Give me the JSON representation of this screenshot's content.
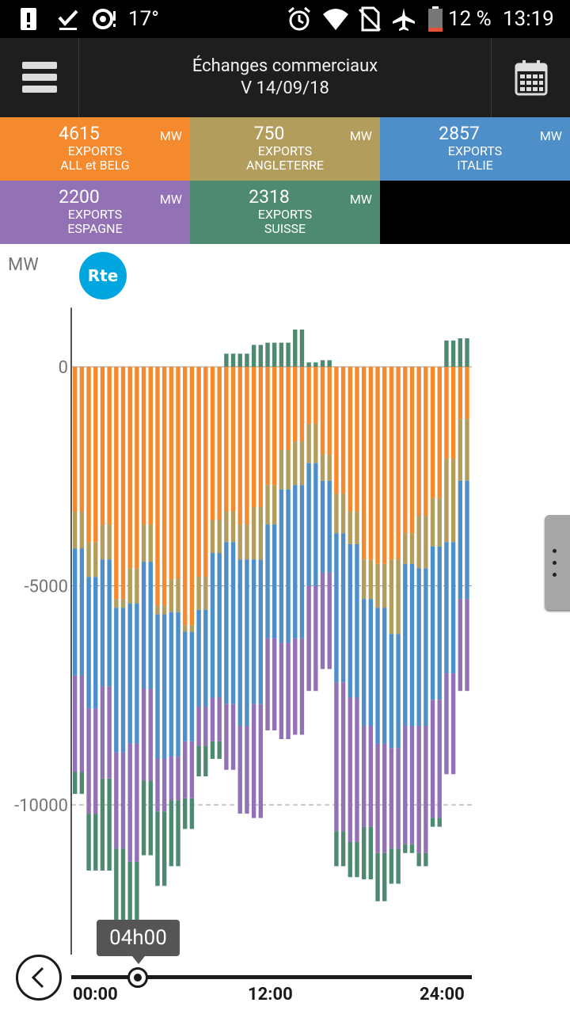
{
  "status_bar": {
    "temperature": "17°",
    "battery": "12 %",
    "time": "13:19"
  },
  "header": {
    "title": "Échanges commerciaux",
    "subtitle": "V 14/09/18"
  },
  "tiles": [
    {
      "value": "4615",
      "unit": "MW",
      "line1": "EXPORTS",
      "line2": "ALL et BELG",
      "color": "#f5892d"
    },
    {
      "value": "750",
      "unit": "MW",
      "line1": "EXPORTS",
      "line2": "ANGLETERRE",
      "color": "#b39d5c"
    },
    {
      "value": "2857",
      "unit": "MW",
      "line1": "EXPORTS",
      "line2": "ITALIE",
      "color": "#4e8fc9"
    },
    {
      "value": "2200",
      "unit": "MW",
      "line1": "EXPORTS",
      "line2": "ESPAGNE",
      "color": "#9271b5"
    },
    {
      "value": "2318",
      "unit": "MW",
      "line1": "EXPORTS",
      "line2": "SUISSE",
      "color": "#4e8a72"
    }
  ],
  "chart_data": {
    "type": "bar",
    "stacked": true,
    "ylabel": "MW",
    "ylim": [
      -13100,
      1350
    ],
    "yticks": [
      "0",
      "-5000",
      "-10000"
    ],
    "grid": true,
    "x_labels": [
      "00:00",
      "12:00",
      "24:00"
    ],
    "colors": [
      "#f5892d",
      "#b39d5c",
      "#4e8fc9",
      "#9271b5",
      "#4e8a72"
    ],
    "series": [
      {
        "name": "ALL et BELG",
        "values": [
          -3300,
          -3300,
          -4000,
          -4000,
          -3600,
          -3600,
          -5300,
          -5300,
          -4600,
          -4600,
          -3600,
          -3600,
          -5450,
          -5450,
          -4850,
          -4850,
          -5900,
          -5900,
          -4800,
          -4800,
          -3500,
          -3500,
          -3300,
          -3300,
          -3600,
          -3600,
          -3200,
          -3200,
          -2700,
          -2700,
          -1900,
          -1900,
          -1700,
          -1700,
          -1300,
          -1300,
          -2000,
          -2000,
          -2900,
          -2900,
          -3300,
          -3300,
          -4400,
          -4400,
          -4500,
          -4500,
          -4400,
          -4400,
          -3800,
          -3800,
          -3400,
          -3400,
          -3000,
          -3000,
          -2100,
          -2100,
          -1200,
          -1200
        ]
      },
      {
        "name": "ANGLETERRE",
        "values": [
          -850,
          -850,
          -800,
          -800,
          -800,
          -800,
          -200,
          -200,
          -800,
          -800,
          -850,
          -850,
          -200,
          -200,
          -750,
          -750,
          -150,
          -150,
          -750,
          -750,
          -750,
          -750,
          -700,
          -700,
          -800,
          -800,
          -1200,
          -1200,
          -900,
          -900,
          -900,
          -900,
          -1000,
          -1000,
          -900,
          -900,
          -600,
          -600,
          -900,
          -900,
          -750,
          -750,
          -900,
          -900,
          -1000,
          -1000,
          -1700,
          -1700,
          -700,
          -700,
          -1200,
          -1200,
          -1100,
          -1100,
          -1900,
          -1900,
          -1400,
          -1400
        ]
      },
      {
        "name": "ITALIE",
        "values": [
          -2900,
          -2900,
          -3000,
          -3000,
          -2900,
          -2900,
          -3300,
          -3300,
          -3200,
          -3200,
          -2900,
          -2900,
          -3300,
          -3300,
          -3300,
          -3300,
          -2500,
          -2500,
          -2200,
          -2200,
          -3300,
          -3300,
          -3700,
          -3700,
          -3800,
          -3800,
          -3300,
          -3300,
          -2600,
          -2600,
          -3500,
          -3500,
          -3500,
          -3500,
          -2800,
          -2800,
          -2100,
          -2100,
          -3400,
          -3400,
          -3500,
          -3500,
          -2900,
          -2900,
          -3100,
          -3100,
          -2600,
          -2600,
          -3700,
          -3700,
          -3600,
          -3600,
          -3500,
          -3500,
          -3000,
          -3000,
          -2700,
          -2700
        ]
      },
      {
        "name": "ESPAGNE",
        "values": [
          -2200,
          -2200,
          -2400,
          -2400,
          -2100,
          -2100,
          -2200,
          -2200,
          -2700,
          -2700,
          -2100,
          -2100,
          -1200,
          -1200,
          -1000,
          -1000,
          -1300,
          -1300,
          -900,
          -900,
          -1000,
          -1000,
          -1500,
          -1500,
          -2000,
          -2000,
          -2600,
          -2600,
          -2100,
          -2100,
          -2200,
          -2200,
          -2200,
          -2200,
          -2400,
          -2400,
          -2200,
          -2200,
          -3400,
          -3400,
          -3300,
          -3300,
          -2300,
          -2300,
          -2500,
          -2500,
          -2300,
          -2300,
          -2700,
          -2700,
          -2900,
          -2900,
          -2700,
          -2700,
          -2300,
          -2300,
          -2100,
          -2100
        ]
      },
      {
        "name": "SUISSE",
        "values": [
          -500,
          -500,
          -1300,
          -1300,
          -2100,
          -2100,
          -2100,
          -2100,
          -2100,
          -2100,
          -1700,
          -1700,
          -1700,
          -1700,
          -1500,
          -1500,
          -700,
          -700,
          -700,
          -700,
          -400,
          -400,
          300,
          300,
          300,
          300,
          500,
          500,
          550,
          550,
          550,
          550,
          850,
          850,
          100,
          100,
          150,
          150,
          -800,
          -800,
          -800,
          -800,
          -1200,
          -1200,
          -1100,
          -1100,
          -800,
          -800,
          -200,
          -200,
          -300,
          -300,
          -200,
          -200,
          600,
          600,
          650,
          650
        ]
      }
    ]
  },
  "timeline": {
    "current": "04h00",
    "start": "00:00",
    "mid": "12:00",
    "end": "24:00"
  }
}
